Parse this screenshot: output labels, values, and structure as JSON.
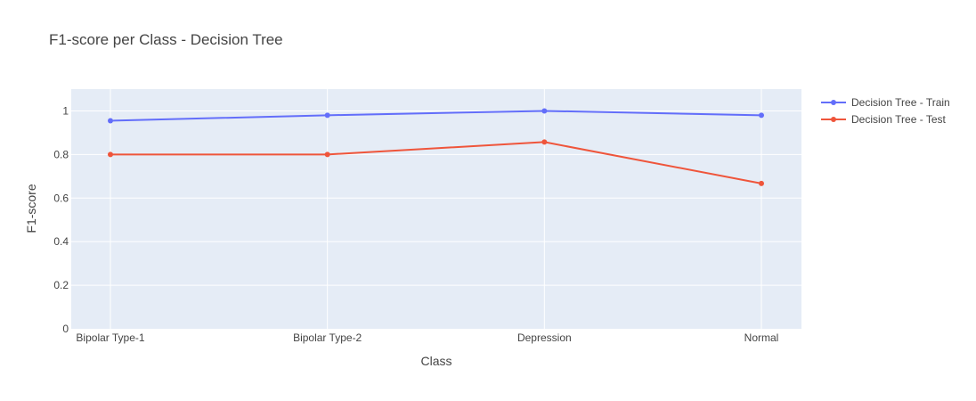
{
  "chart_data": {
    "type": "line",
    "title": "F1-score per Class - Decision Tree",
    "xlabel": "Class",
    "ylabel": "F1-score",
    "categories": [
      "Bipolar Type-1",
      "Bipolar Type-2",
      "Depression",
      "Normal"
    ],
    "ylim": [
      0,
      1.1
    ],
    "yticks": [
      0,
      0.2,
      0.4,
      0.6,
      0.8,
      1
    ],
    "ytick_labels": [
      "0",
      "0.2",
      "0.4",
      "0.6",
      "0.8",
      "1"
    ],
    "grid": true,
    "legend_position": "top-right",
    "series": [
      {
        "name": "Decision Tree - Train",
        "color": "#636efa",
        "values": [
          0.955,
          0.98,
          1.0,
          0.98
        ]
      },
      {
        "name": "Decision Tree - Test",
        "color": "#ef553b",
        "values": [
          0.8,
          0.8,
          0.857,
          0.667
        ]
      }
    ]
  },
  "colors": {
    "plot_background": "#e5ecf6",
    "grid": "#ffffff",
    "text": "#444444"
  }
}
